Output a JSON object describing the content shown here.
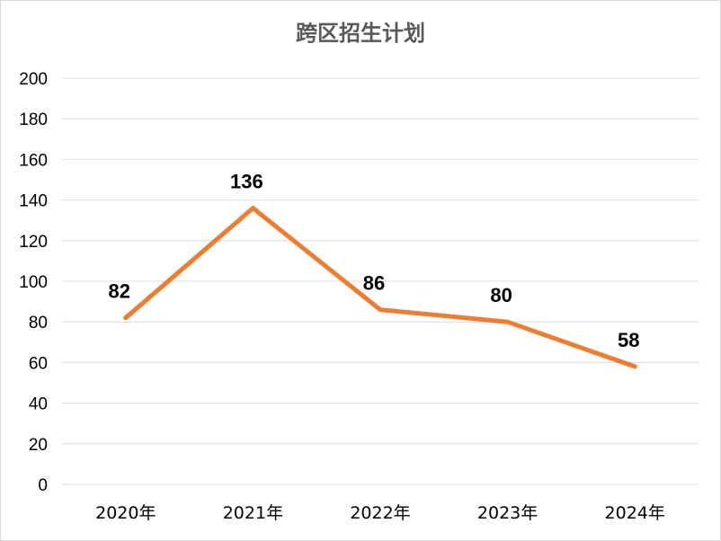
{
  "chart_data": {
    "type": "line",
    "title": "跨区招生计划",
    "xlabel": "",
    "ylabel": "",
    "categories": [
      "2020年",
      "2021年",
      "2022年",
      "2023年",
      "2024年"
    ],
    "series": [
      {
        "values": [
          82,
          136,
          86,
          80,
          58
        ],
        "color": "#ED7D31"
      }
    ],
    "ylim": [
      0,
      200
    ],
    "yticks": [
      "0",
      "20",
      "40",
      "60",
      "80",
      "100",
      "120",
      "140",
      "160",
      "180",
      "200"
    ],
    "data_labels": [
      "82",
      "136",
      "86",
      "80",
      "58"
    ],
    "grid": true,
    "legend": "none"
  }
}
